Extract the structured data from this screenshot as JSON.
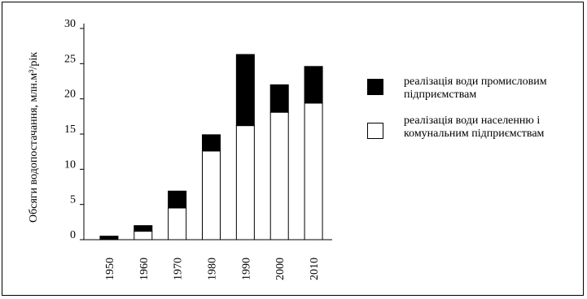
{
  "chart_data": {
    "type": "bar",
    "stacked": true,
    "categories": [
      "1950",
      "1960",
      "1970",
      "1980",
      "1990",
      "2000",
      "2010"
    ],
    "series": [
      {
        "name": "реалізація води населенню і комунальним підприємствам",
        "color": "#ffffff",
        "values": [
          0.0,
          1.2,
          4.5,
          12.6,
          16.2,
          18.1,
          19.4
        ]
      },
      {
        "name": "реалізація води промисловим підприємствам",
        "color": "#000000",
        "values": [
          0.5,
          0.8,
          2.4,
          2.3,
          10.1,
          3.9,
          5.2
        ]
      }
    ],
    "ylabel": "Обсяги водопостачання, млн.м³/рік",
    "ylim": [
      0,
      30
    ],
    "yticks": [
      0,
      5,
      10,
      15,
      20,
      25,
      30
    ],
    "grid": false,
    "legend_position": "right"
  }
}
